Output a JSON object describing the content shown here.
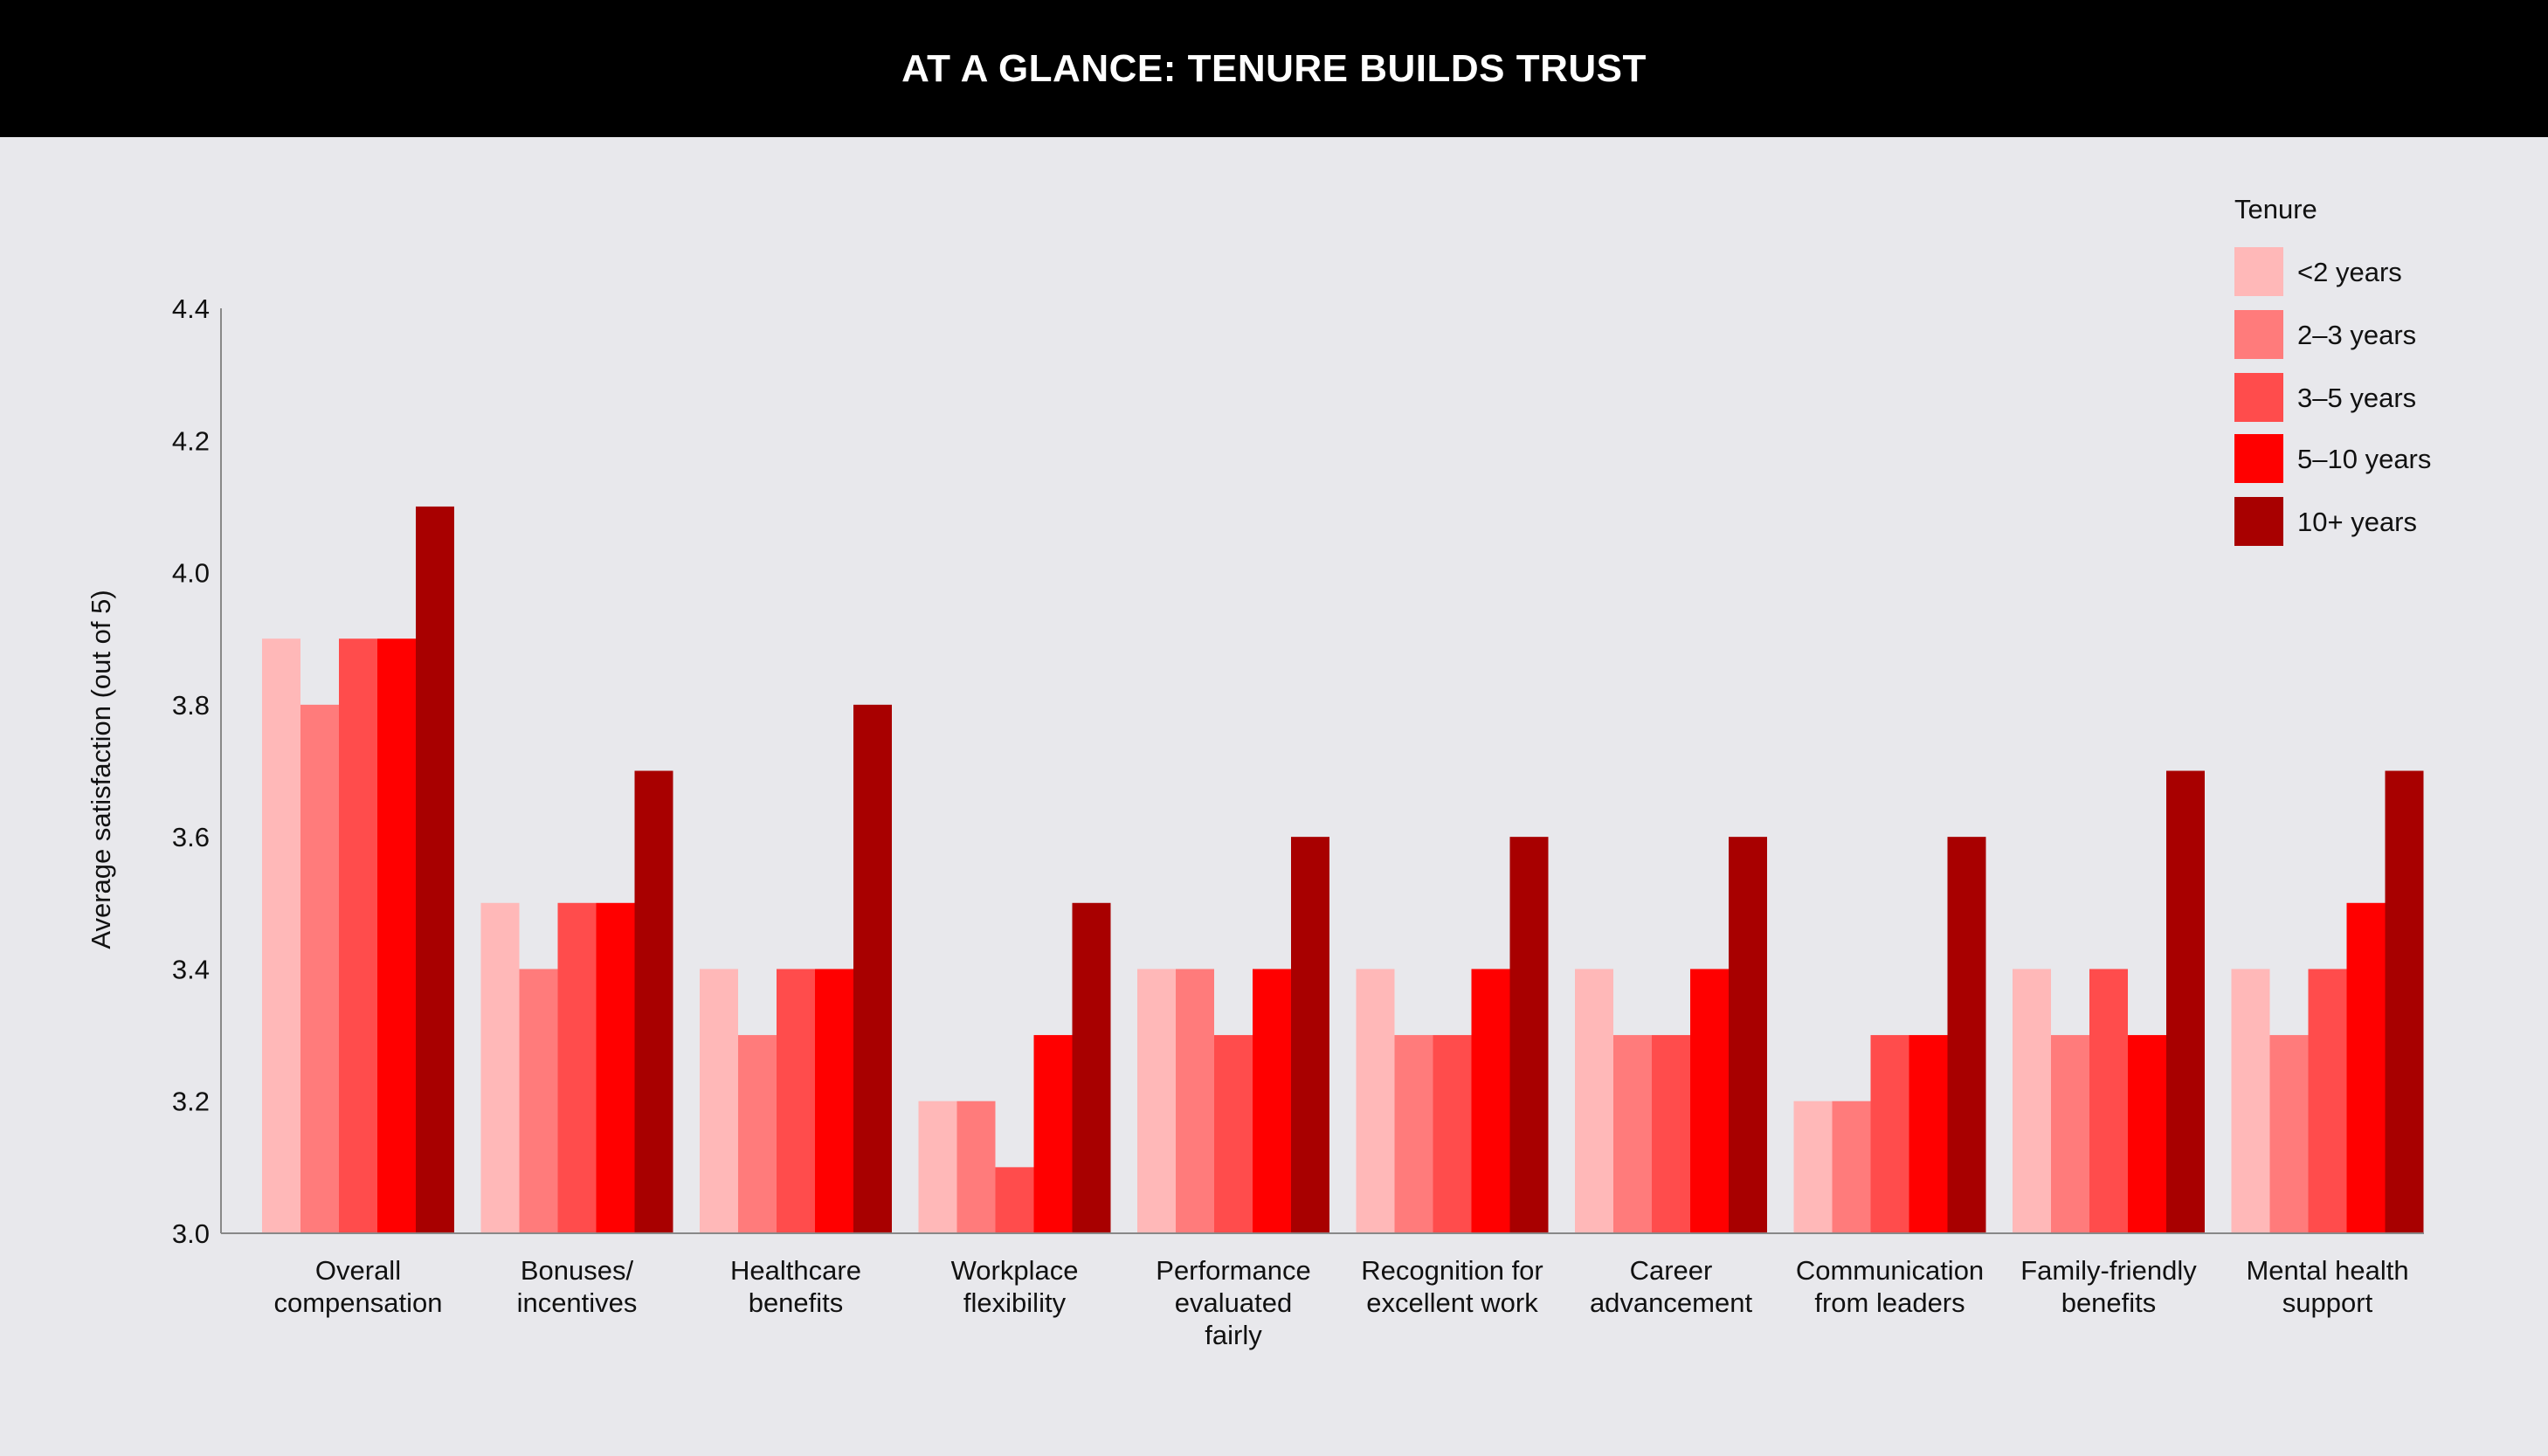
{
  "header": {
    "title": "AT A GLANCE: TENURE BUILDS TRUST"
  },
  "chart_data": {
    "type": "bar",
    "title": "AT A GLANCE: TENURE BUILDS TRUST",
    "ylabel": "Average satisfaction (out of 5)",
    "xlabel": "",
    "ylim": [
      3.0,
      4.4
    ],
    "yticks": [
      "3.0",
      "3.2",
      "3.4",
      "3.6",
      "3.8",
      "4.0",
      "4.2",
      "4.4"
    ],
    "grid": false,
    "legend_title": "Tenure",
    "legend_position": "top-right",
    "categories": [
      [
        "Overall",
        "compensation"
      ],
      [
        "Bonuses/",
        "incentives"
      ],
      [
        "Healthcare",
        "benefits"
      ],
      [
        "Workplace",
        "flexibility"
      ],
      [
        "Performance",
        "evaluated",
        "fairly"
      ],
      [
        "Recognition for",
        "excellent work"
      ],
      [
        "Career",
        "advancement"
      ],
      [
        "Communication",
        "from leaders"
      ],
      [
        "Family-friendly",
        "benefits"
      ],
      [
        "Mental health",
        "support"
      ]
    ],
    "series": [
      {
        "name": "<2 years",
        "color": "#ffb8b8",
        "values": [
          3.9,
          3.5,
          3.4,
          3.2,
          3.4,
          3.4,
          3.4,
          3.2,
          3.4,
          3.4
        ]
      },
      {
        "name": "2–3 years",
        "color": "#ff7b7b",
        "values": [
          3.8,
          3.4,
          3.3,
          3.2,
          3.4,
          3.3,
          3.3,
          3.2,
          3.3,
          3.3
        ]
      },
      {
        "name": "3–5 years",
        "color": "#ff4c4c",
        "values": [
          3.9,
          3.5,
          3.4,
          3.1,
          3.3,
          3.3,
          3.3,
          3.3,
          3.4,
          3.4
        ]
      },
      {
        "name": "5–10 years",
        "color": "#ff0000",
        "values": [
          3.9,
          3.5,
          3.4,
          3.3,
          3.4,
          3.4,
          3.4,
          3.3,
          3.3,
          3.5
        ]
      },
      {
        "name": "10+ years",
        "color": "#a80000",
        "values": [
          4.1,
          3.7,
          3.8,
          3.5,
          3.6,
          3.6,
          3.6,
          3.6,
          3.7,
          3.7
        ]
      }
    ]
  }
}
